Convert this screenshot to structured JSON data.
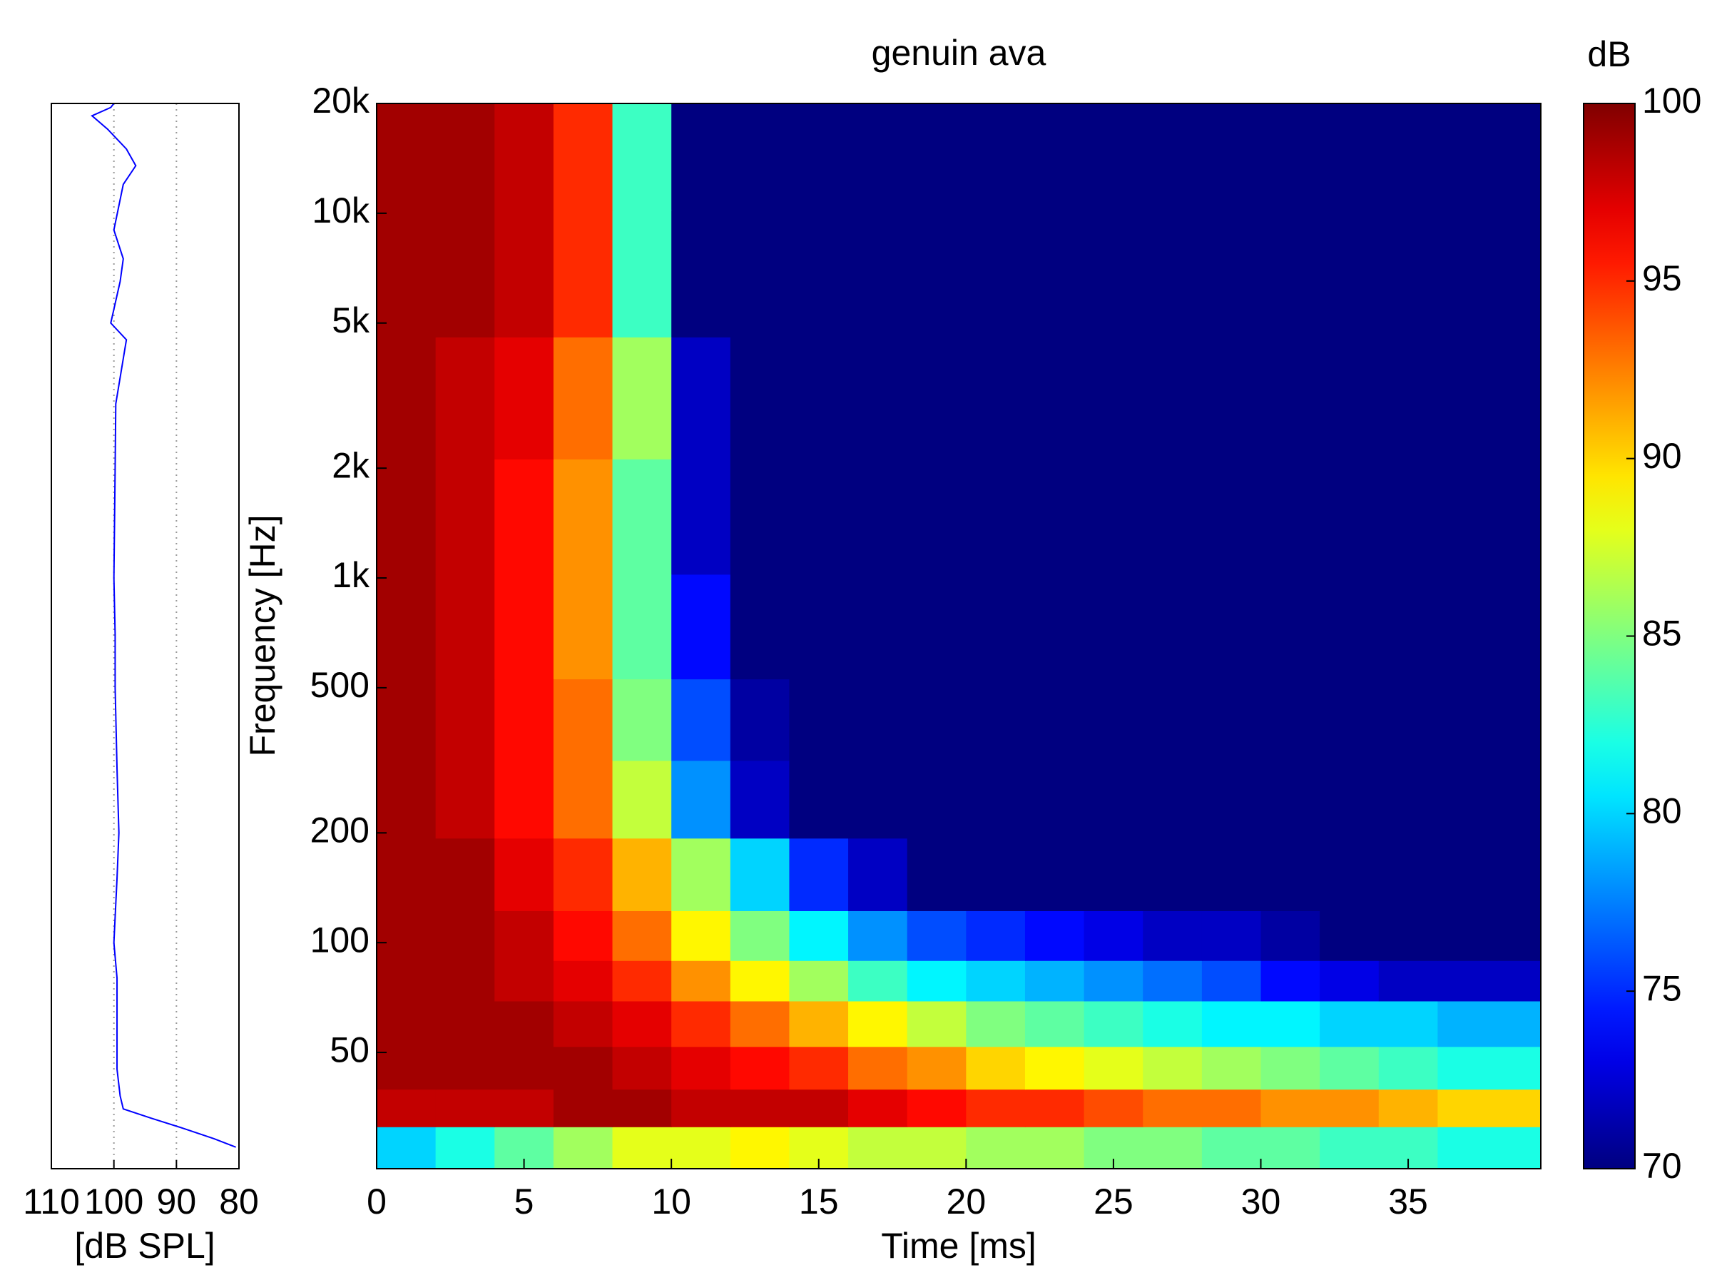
{
  "chart_data": [
    {
      "type": "line",
      "x_label": "[dB SPL]",
      "xlim": [
        110,
        80
      ],
      "xticks": [
        110,
        100,
        90,
        80
      ],
      "ylim": [
        24,
        20000
      ],
      "y_scale": "log",
      "grid": true,
      "series": [
        {
          "color": "#0000ff",
          "x": [
            27.5,
            29,
            31,
            33,
            35,
            38,
            45,
            60,
            80,
            100,
            150,
            200,
            300,
            500,
            700,
            1000,
            2000,
            3000,
            4500,
            5000,
            6500,
            7500,
            9000,
            12000,
            13500,
            15000,
            17000,
            18500,
            19500,
            20000
          ],
          "values": [
            80.5,
            84,
            89,
            94,
            98.5,
            99,
            99.5,
            99.5,
            99.5,
            100,
            99.5,
            99.2,
            99.5,
            99.8,
            99.8,
            100,
            99.8,
            99.7,
            98,
            100.5,
            99,
            98.5,
            100,
            98.5,
            96.5,
            98,
            101,
            103.5,
            100.5,
            100
          ]
        }
      ]
    },
    {
      "type": "heatmap",
      "title": "genuin ava",
      "x_label": "Time [ms]",
      "y_label": "Frequency [Hz]",
      "x": [
        1,
        3,
        5,
        7,
        9,
        11,
        13,
        15,
        17,
        19,
        21,
        23,
        25,
        27,
        29,
        31,
        33,
        35,
        37,
        39
      ],
      "y": [
        28,
        35,
        45,
        60,
        80,
        100,
        150,
        250,
        400,
        700,
        1500,
        3000,
        7000,
        15000
      ],
      "values": [
        [
          80,
          82,
          84,
          86,
          88,
          88,
          89,
          88,
          87,
          87,
          86,
          86,
          85,
          85,
          84,
          84,
          83,
          83,
          82,
          82
        ],
        [
          98,
          98,
          98,
          99,
          99,
          98,
          98,
          98,
          97,
          96,
          95,
          95,
          94,
          93,
          93,
          92,
          92,
          91,
          90,
          90
        ],
        [
          99,
          99,
          99,
          99,
          98,
          97,
          96,
          95,
          93,
          92,
          90,
          89,
          88,
          87,
          86,
          85,
          84,
          83,
          82,
          82
        ],
        [
          99,
          99,
          99,
          98,
          97,
          95,
          93,
          91,
          89,
          87,
          85,
          84,
          83,
          82,
          81,
          81,
          80,
          80,
          79,
          79
        ],
        [
          99,
          99,
          98,
          97,
          95,
          92,
          89,
          86,
          83,
          81,
          80,
          79,
          78,
          77,
          76,
          74,
          73,
          72,
          72,
          72
        ],
        [
          99,
          99,
          98,
          96,
          93,
          89,
          85,
          81,
          78,
          76,
          75,
          74,
          73,
          72,
          72,
          71,
          70,
          70,
          70,
          70
        ],
        [
          99,
          99,
          97,
          95,
          91,
          86,
          80,
          75,
          72,
          70,
          70,
          70,
          70,
          70,
          70,
          70,
          70,
          70,
          70,
          70
        ],
        [
          99,
          98,
          96,
          93,
          87,
          78,
          72,
          70,
          70,
          70,
          70,
          70,
          70,
          70,
          70,
          70,
          70,
          70,
          70,
          70
        ],
        [
          99,
          98,
          96,
          93,
          85,
          76,
          71,
          70,
          70,
          70,
          70,
          70,
          70,
          70,
          70,
          70,
          70,
          70,
          70,
          70
        ],
        [
          99,
          98,
          96,
          92,
          84,
          74,
          70,
          70,
          70,
          70,
          70,
          70,
          70,
          70,
          70,
          70,
          70,
          70,
          70,
          70
        ],
        [
          99,
          98,
          96,
          92,
          84,
          72,
          70,
          70,
          70,
          70,
          70,
          70,
          70,
          70,
          70,
          70,
          70,
          70,
          70,
          70
        ],
        [
          99,
          98,
          97,
          93,
          86,
          72,
          70,
          70,
          70,
          70,
          70,
          70,
          70,
          70,
          70,
          70,
          70,
          70,
          70,
          70
        ],
        [
          99,
          99,
          98,
          95,
          83,
          70,
          70,
          70,
          70,
          70,
          70,
          70,
          70,
          70,
          70,
          70,
          70,
          70,
          70,
          70
        ],
        [
          99,
          99,
          98,
          95,
          83,
          70,
          70,
          70,
          70,
          70,
          70,
          70,
          70,
          70,
          70,
          70,
          70,
          70,
          70,
          70
        ]
      ],
      "xlim": [
        0,
        39.5
      ],
      "xticks": [
        0,
        5,
        10,
        15,
        20,
        25,
        30,
        35
      ],
      "ylim": [
        24,
        20000
      ],
      "y_scale": "log",
      "yticks": [
        50,
        100,
        200,
        500,
        {
          "value": 1000,
          "label": "1k"
        },
        {
          "value": 2000,
          "label": "2k"
        },
        {
          "value": 5000,
          "label": "5k"
        },
        {
          "value": 10000,
          "label": "10k"
        },
        {
          "value": 20000,
          "label": "20k"
        }
      ],
      "colormap": "jet",
      "colorbar": {
        "label": "dB",
        "clim": [
          70,
          100
        ],
        "ticks": [
          70,
          75,
          80,
          85,
          90,
          95,
          100
        ]
      }
    }
  ]
}
